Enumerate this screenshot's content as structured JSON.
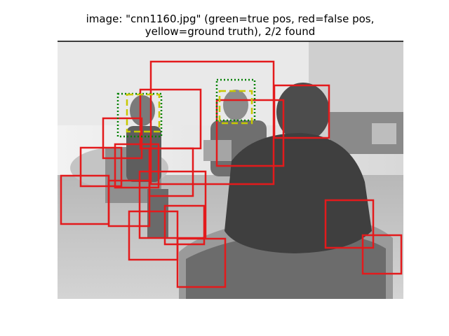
{
  "title": {
    "line1": "image: \"cnn1160.jpg\" (green=true pos, red=false pos,",
    "line2": "yellow=ground truth), 2/2 found"
  },
  "colors": {
    "true_pos": "#008000",
    "false_pos": "#e31a1c",
    "ground_truth": "#c8c800"
  }
}
